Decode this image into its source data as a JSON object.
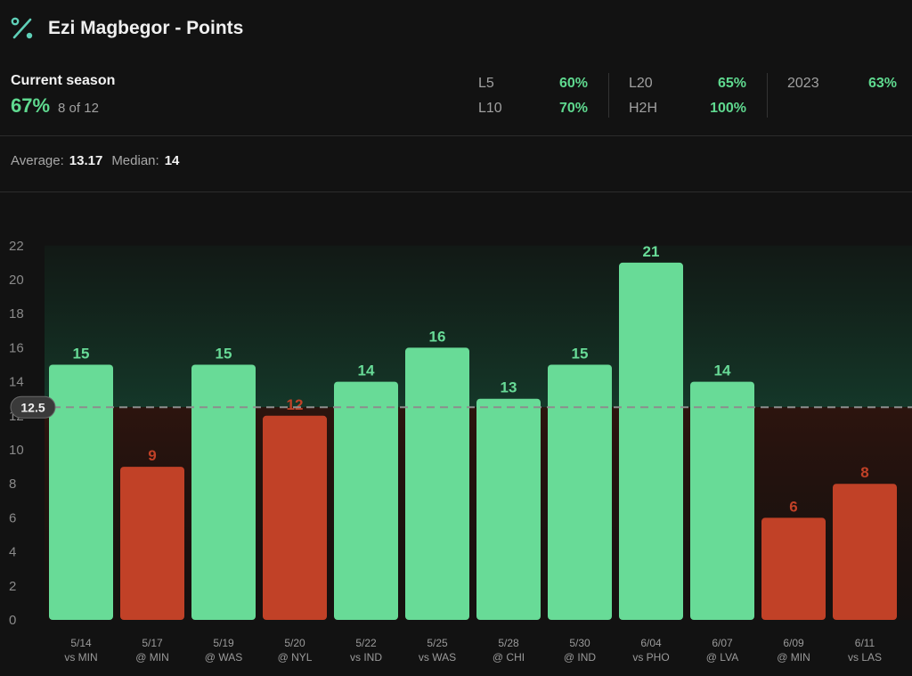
{
  "header": {
    "title": "Ezi Magbegor - Points",
    "icon": "percent-icon"
  },
  "season": {
    "label": "Current season",
    "pct": "67%",
    "count": "8 of 12"
  },
  "stats": [
    {
      "key": "L5",
      "value": "60%"
    },
    {
      "key": "L10",
      "value": "70%"
    },
    {
      "key": "L20",
      "value": "65%"
    },
    {
      "key": "H2H",
      "value": "100%"
    },
    {
      "key": "2023",
      "value": "63%"
    }
  ],
  "summary": {
    "avg_label": "Average:",
    "avg_value": "13.17",
    "median_label": "Median:",
    "median_value": "14"
  },
  "colors": {
    "over": "#68db97",
    "under": "#c14127",
    "accent": "#5fd98f"
  },
  "chart_data": {
    "type": "bar",
    "categories": [
      [
        "5/14",
        "vs MIN"
      ],
      [
        "5/17",
        "@ MIN"
      ],
      [
        "5/19",
        "@ WAS"
      ],
      [
        "5/20",
        "@ NYL"
      ],
      [
        "5/22",
        "vs IND"
      ],
      [
        "5/25",
        "vs WAS"
      ],
      [
        "5/28",
        "@ CHI"
      ],
      [
        "5/30",
        "@ IND"
      ],
      [
        "6/04",
        "vs PHO"
      ],
      [
        "6/07",
        "@ LVA"
      ],
      [
        "6/09",
        "@ MIN"
      ],
      [
        "6/11",
        "vs LAS"
      ]
    ],
    "values": [
      15,
      9,
      15,
      12,
      14,
      16,
      13,
      15,
      21,
      14,
      6,
      8
    ],
    "line": 12.5,
    "ylim": [
      0,
      22
    ],
    "yticks": [
      0,
      2,
      4,
      6,
      8,
      10,
      12,
      14,
      16,
      18,
      20,
      22
    ],
    "grid": false
  }
}
